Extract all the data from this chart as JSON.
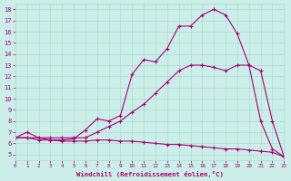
{
  "xlabel": "Windchill (Refroidissement éolien,°C)",
  "bg_color": "#cceee8",
  "line_color": "#aa0077",
  "grid_color": "#aaddcc",
  "xlim": [
    0,
    23
  ],
  "ylim": [
    4.5,
    18.5
  ],
  "x_ticks": [
    0,
    1,
    2,
    3,
    4,
    5,
    6,
    7,
    8,
    9,
    10,
    11,
    12,
    13,
    14,
    15,
    16,
    17,
    18,
    19,
    20,
    21,
    22,
    23
  ],
  "y_ticks": [
    5,
    6,
    7,
    8,
    9,
    10,
    11,
    12,
    13,
    14,
    15,
    16,
    17,
    18
  ],
  "curve_bottom_x": [
    0,
    1,
    2,
    3,
    4,
    5,
    6,
    7,
    8,
    9,
    10,
    11,
    12,
    13,
    14,
    15,
    16,
    17,
    18,
    19,
    20,
    21,
    22,
    23
  ],
  "curve_bottom_y": [
    6.5,
    6.5,
    6.3,
    6.3,
    6.2,
    6.2,
    6.2,
    6.3,
    6.3,
    6.2,
    6.2,
    6.1,
    6.0,
    5.9,
    5.9,
    5.8,
    5.7,
    5.6,
    5.5,
    5.5,
    5.4,
    5.3,
    5.2,
    4.8
  ],
  "curve_mid_x": [
    0,
    1,
    2,
    3,
    4,
    5,
    6,
    7,
    8,
    9,
    10,
    11,
    12,
    13,
    14,
    15,
    16,
    17,
    18,
    19,
    20,
    21,
    22,
    23
  ],
  "curve_mid_y": [
    6.5,
    6.5,
    6.5,
    6.5,
    6.5,
    6.5,
    6.5,
    7.0,
    7.5,
    8.0,
    8.8,
    9.5,
    10.5,
    11.5,
    12.5,
    13.0,
    13.0,
    12.8,
    12.5,
    13.0,
    13.0,
    12.5,
    8.0,
    4.8
  ],
  "curve_top_x": [
    0,
    1,
    2,
    3,
    4,
    5,
    6,
    7,
    8,
    9,
    10,
    11,
    12,
    13,
    14,
    15,
    16,
    17,
    18,
    19,
    20,
    21,
    22,
    23
  ],
  "curve_top_y": [
    6.5,
    7.0,
    6.5,
    6.3,
    6.3,
    6.4,
    7.2,
    8.2,
    8.0,
    8.5,
    12.2,
    13.5,
    13.3,
    14.5,
    16.5,
    16.5,
    17.5,
    18.0,
    17.5,
    15.8,
    13.0,
    8.0,
    5.5,
    4.8
  ]
}
